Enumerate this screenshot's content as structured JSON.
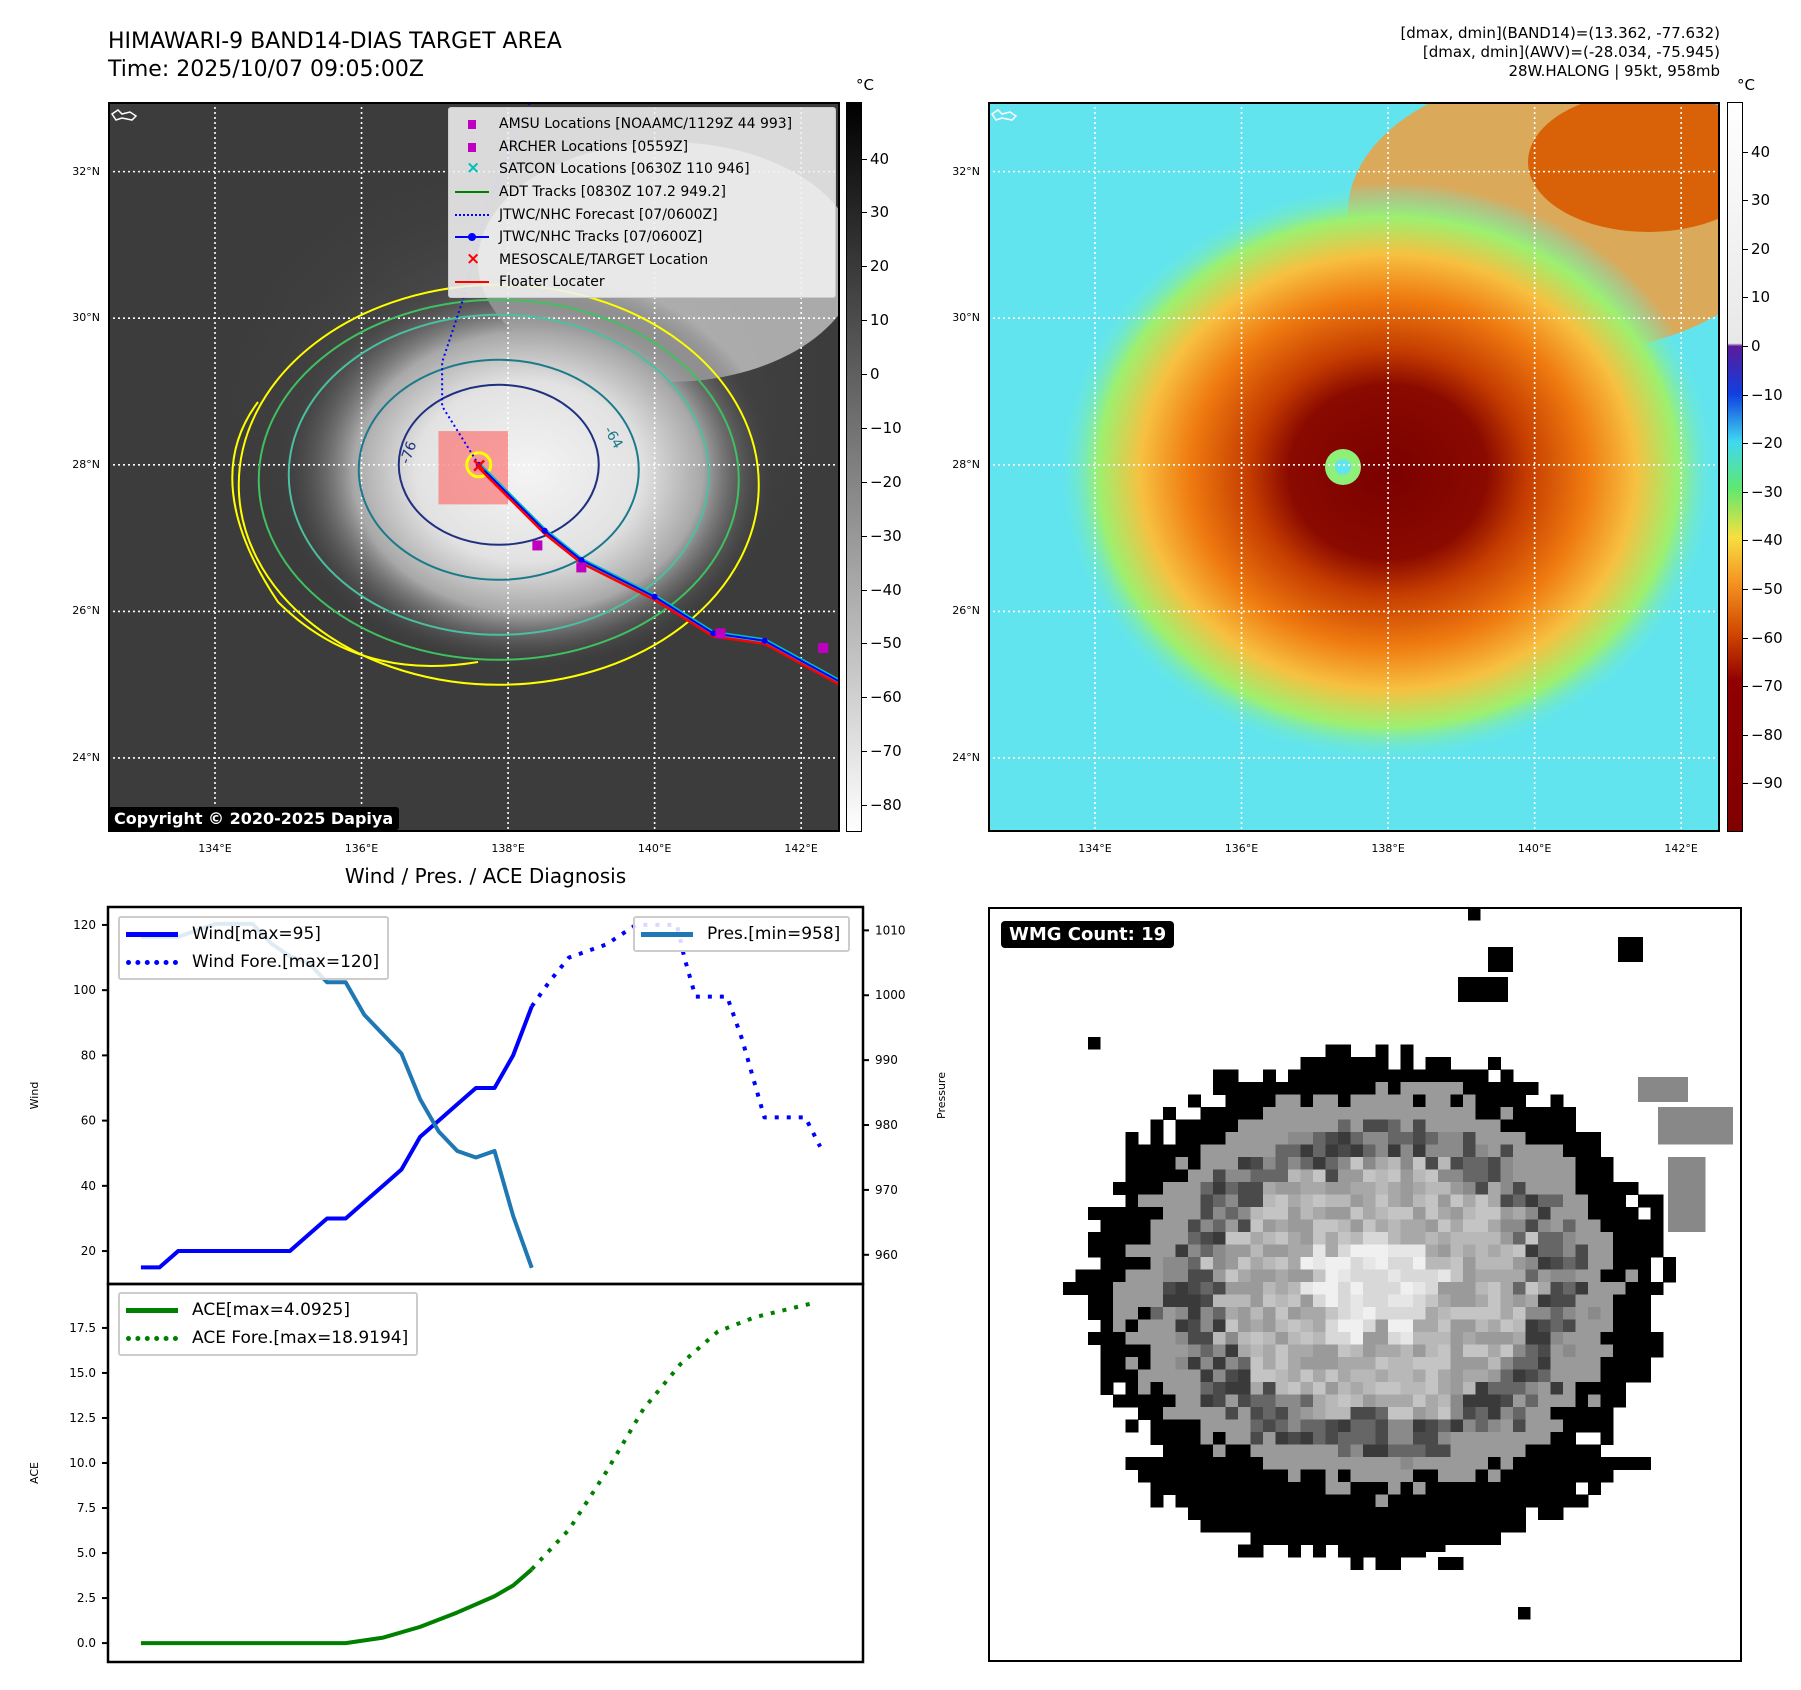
{
  "header": {
    "title": "HIMAWARI-9 BAND14-DIAS TARGET AREA",
    "time": "Time: 2025/10/07 09:05:00Z",
    "stats": [
      "[dmax, dmin](BAND14)=(13.362, -77.632)",
      "[dmax, dmin](AWV)=(-28.034, -75.945)",
      "28W.HALONG | 95kt, 958mb"
    ]
  },
  "maps": {
    "unit": "°C",
    "lat_values": [
      32,
      30,
      28,
      26,
      24
    ],
    "lat_ticks": [
      "32°N",
      "30°N",
      "28°N",
      "26°N",
      "24°N"
    ],
    "lon_values": [
      134,
      136,
      138,
      140,
      142
    ],
    "lon_ticks": [
      "134°E",
      "136°E",
      "138°E",
      "140°E",
      "142°E"
    ],
    "lon_range": [
      132.54,
      142.53
    ],
    "lat_range": [
      22.99,
      32.95
    ],
    "storm_center": {
      "lon": 137.6,
      "lat": 28.0
    },
    "copyright": "Copyright © 2020-2025 Dapiya",
    "contour_labels": [
      "-76",
      "-64"
    ],
    "legend": [
      {
        "label": "AMSU Locations [NOAAMC/1129Z 44 993]",
        "color": "#c000c0",
        "marker": "square"
      },
      {
        "label": "ARCHER Locations [0559Z]",
        "color": "#c000c0",
        "marker": "square"
      },
      {
        "label": "SATCON Locations [0630Z 110 946]",
        "color": "#00bfbf",
        "marker": "x"
      },
      {
        "label": "ADT Tracks [0830Z 107.2 949.2]",
        "color": "#008000",
        "marker": "line"
      },
      {
        "label": "JTWC/NHC Forecast [07/0600Z]",
        "color": "#0000ff",
        "marker": "dotted"
      },
      {
        "label": "JTWC/NHC Tracks [07/0600Z]",
        "color": "#0000ff",
        "marker": "line-dot"
      },
      {
        "label": "MESOSCALE/TARGET Location",
        "color": "#ff0000",
        "marker": "x"
      },
      {
        "label": "Floater Locater",
        "color": "#ff0000",
        "marker": "line"
      }
    ],
    "track": [
      [
        142.6,
        25.0
      ],
      [
        141.5,
        25.6
      ],
      [
        140.8,
        25.7
      ],
      [
        140.0,
        26.2
      ],
      [
        139.0,
        26.7
      ],
      [
        138.5,
        27.1
      ],
      [
        137.6,
        28.0
      ]
    ],
    "forecast_track": [
      [
        137.6,
        28.0
      ],
      [
        137.1,
        28.8
      ],
      [
        137.1,
        29.4
      ],
      [
        137.4,
        30.3
      ],
      [
        137.7,
        31.5
      ],
      [
        138.3,
        32.95
      ]
    ],
    "amsu_points": [
      [
        138.4,
        26.9
      ],
      [
        140.9,
        25.7
      ],
      [
        142.3,
        25.5
      ],
      [
        139.0,
        26.6
      ]
    ],
    "floater_box": {
      "lon": [
        137.05,
        138.0
      ],
      "lat": [
        27.46,
        28.46
      ]
    },
    "colorbar_left": {
      "ticks": [
        40,
        30,
        20,
        10,
        0,
        -10,
        -20,
        -30,
        -40,
        -50,
        -60,
        -70,
        -80
      ],
      "range": [
        -85,
        50.5
      ]
    },
    "colorbar_right": {
      "ticks": [
        40,
        30,
        20,
        10,
        0,
        -10,
        -20,
        -30,
        -40,
        -50,
        -60,
        -70,
        -80,
        -90
      ],
      "range": [
        -100,
        50.2
      ]
    }
  },
  "chart_data": [
    {
      "type": "line",
      "title": "Wind / Pres. / ACE Diagnosis",
      "ylabel": "Wind",
      "ylabel_right": "Pressure",
      "xlim": [
        -1.77,
        38.8
      ],
      "ylim": [
        9.9,
        125.5
      ],
      "ylim_right": [
        955.5,
        1013.6
      ],
      "yticks": [
        20,
        40,
        60,
        80,
        100,
        120
      ],
      "yticks_right": [
        960,
        970,
        980,
        990,
        1000,
        1010
      ],
      "series": [
        {
          "name": "Wind[max=95]",
          "color": "#0000ff",
          "style": "solid",
          "axis": "left",
          "x": [
            0,
            1,
            2,
            3,
            4,
            5,
            6,
            7,
            8,
            9,
            10,
            11,
            12,
            13,
            14,
            15,
            16,
            17,
            18,
            19,
            20,
            21
          ],
          "values": [
            15,
            15,
            20,
            20,
            20,
            20,
            20,
            20,
            20,
            25,
            30,
            30,
            35,
            40,
            45,
            55,
            60,
            65,
            70,
            70,
            80,
            95
          ]
        },
        {
          "name": "Wind Fore.[max=120]",
          "color": "#0000ff",
          "style": "dotted",
          "axis": "left",
          "x": [
            21,
            22,
            23,
            25,
            26.6,
            28.8,
            29.2,
            29.8,
            31.5,
            32.3,
            33.5,
            35.7,
            36.5
          ],
          "values": [
            95,
            103,
            110,
            114,
            120,
            120,
            110,
            98,
            98,
            85,
            61,
            61,
            52
          ]
        },
        {
          "name": "Pres.[min=958]",
          "color": "#1f77b4",
          "style": "solid",
          "axis": "right",
          "x": [
            0,
            1,
            2,
            3,
            4,
            5,
            6,
            7,
            8,
            9,
            10,
            11,
            12,
            13,
            14,
            15,
            16,
            17,
            18,
            19,
            20,
            21
          ],
          "values": [
            1009,
            1009,
            1009,
            1010,
            1011,
            1011,
            1011,
            1008,
            1006,
            1005,
            1002,
            1002,
            997,
            994,
            991,
            984,
            979,
            976,
            975,
            976,
            966,
            958
          ]
        }
      ]
    },
    {
      "type": "line",
      "ylabel": "ACE",
      "xlim": [
        -1.77,
        38.8
      ],
      "ylim": [
        -1.05,
        19.94
      ],
      "yticks": [
        0.0,
        2.5,
        5.0,
        7.5,
        10.0,
        12.5,
        15.0,
        17.5
      ],
      "ytick_labels": [
        "0.0",
        "2.5",
        "5.0",
        "7.5",
        "10.0",
        "12.5",
        "15.0",
        "17.5"
      ],
      "series": [
        {
          "name": "ACE[max=4.0925]",
          "color": "#008000",
          "style": "solid",
          "x": [
            0,
            11,
            13,
            15,
            17,
            19,
            20,
            21
          ],
          "values": [
            0,
            0,
            0.3,
            0.9,
            1.7,
            2.6,
            3.2,
            4.09
          ]
        },
        {
          "name": "ACE Fore.[max=18.9194]",
          "color": "#008000",
          "style": "dotted",
          "x": [
            21,
            23,
            25,
            27,
            29,
            31,
            33,
            35,
            36.2
          ],
          "values": [
            4.1,
            6.3,
            9.5,
            13,
            15.5,
            17.3,
            18.1,
            18.6,
            18.9
          ]
        }
      ]
    }
  ],
  "wmg": {
    "label": "WMG Count: 19"
  }
}
